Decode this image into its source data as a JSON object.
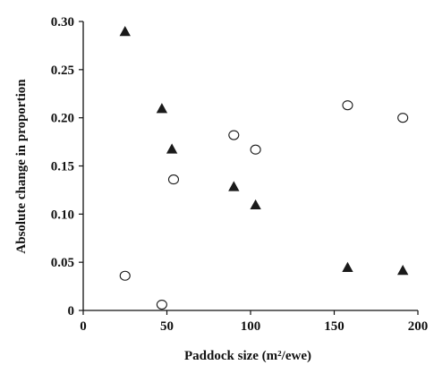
{
  "chart_data": {
    "type": "scatter",
    "title": "",
    "xlabel": "Paddock size (m²/ewe)",
    "ylabel": "Absolute change in proportion",
    "xlim": [
      0,
      200
    ],
    "ylim": [
      0,
      0.3
    ],
    "x_ticks": [
      "0",
      "50",
      "100",
      "150",
      "200"
    ],
    "y_ticks": [
      "0",
      "0.05",
      "0.10",
      "0.15",
      "0.20",
      "0.25",
      "0.30"
    ],
    "grid": false,
    "legend": "none",
    "series": [
      {
        "marker": "triangle-filled",
        "color": "#1a1a1a",
        "points": [
          {
            "x": 25,
            "y": 0.289
          },
          {
            "x": 47,
            "y": 0.209
          },
          {
            "x": 53,
            "y": 0.167
          },
          {
            "x": 90,
            "y": 0.128
          },
          {
            "x": 103,
            "y": 0.109
          },
          {
            "x": 158,
            "y": 0.044
          },
          {
            "x": 191,
            "y": 0.041
          }
        ]
      },
      {
        "marker": "circle-open",
        "color": "#1a1a1a",
        "points": [
          {
            "x": 25,
            "y": 0.036
          },
          {
            "x": 47,
            "y": 0.006
          },
          {
            "x": 54,
            "y": 0.136
          },
          {
            "x": 90,
            "y": 0.182
          },
          {
            "x": 103,
            "y": 0.167
          },
          {
            "x": 158,
            "y": 0.213
          },
          {
            "x": 191,
            "y": 0.2
          }
        ]
      }
    ]
  }
}
